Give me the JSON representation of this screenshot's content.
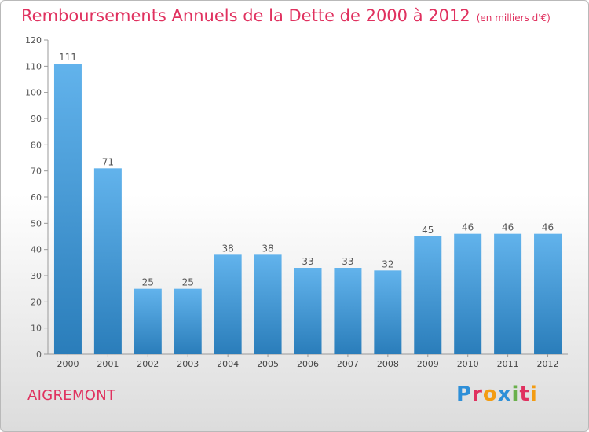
{
  "title": "Remboursements Annuels de la Dette de 2000 à 2012",
  "unit": "(en milliers d'€)",
  "commune": "AIGREMONT",
  "logo": "Proxiti",
  "colors": {
    "title": "#e0315f",
    "bar_top": "#62b3ec",
    "bar_bottom": "#2a7dba"
  },
  "chart_data": {
    "type": "bar",
    "title": "Remboursements Annuels de la Dette de 2000 à 2012",
    "subtitle": "(en milliers d'€)",
    "xlabel": "",
    "ylabel": "",
    "categories": [
      "2000",
      "2001",
      "2002",
      "2003",
      "2004",
      "2005",
      "2006",
      "2007",
      "2008",
      "2009",
      "2010",
      "2011",
      "2012"
    ],
    "values": [
      111,
      71,
      25,
      25,
      38,
      38,
      33,
      33,
      32,
      45,
      46,
      46,
      46
    ],
    "ylim": [
      0,
      120
    ],
    "yticks": [
      0,
      10,
      20,
      30,
      40,
      50,
      60,
      70,
      80,
      90,
      100,
      110,
      120
    ],
    "grid": false,
    "data_labels": true
  }
}
